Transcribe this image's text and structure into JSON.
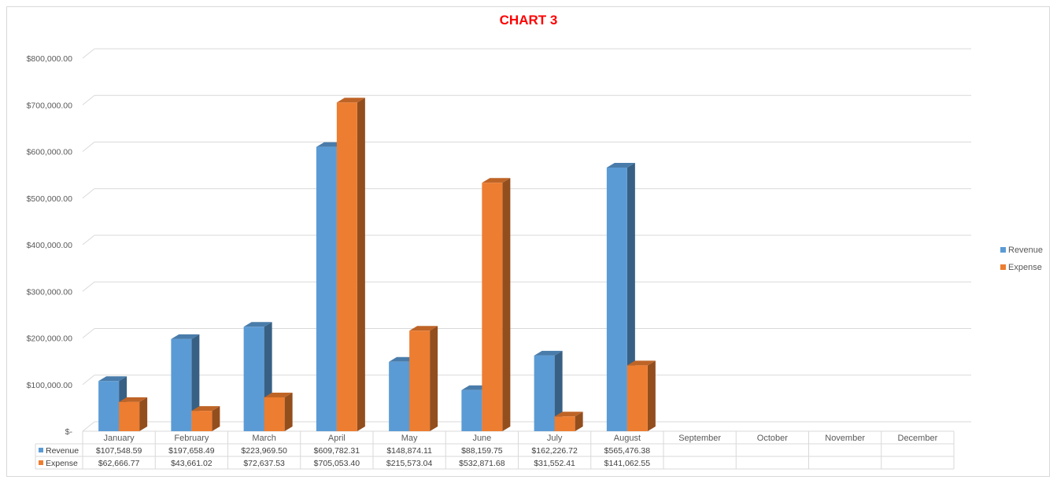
{
  "chart_data": {
    "type": "bar",
    "title": "CHART 3",
    "categories": [
      "January",
      "February",
      "March",
      "April",
      "May",
      "June",
      "July",
      "August",
      "September",
      "October",
      "November",
      "December"
    ],
    "series": [
      {
        "name": "Revenue",
        "color": "#5b9bd5",
        "values": [
          107548.59,
          197658.49,
          223969.5,
          609782.31,
          148874.11,
          88159.75,
          162226.72,
          565476.38,
          null,
          null,
          null,
          null
        ],
        "labels": [
          "$107,548.59",
          "$197,658.49",
          "$223,969.50",
          "$609,782.31",
          "$148,874.11",
          "$88,159.75",
          "$162,226.72",
          "$565,476.38",
          "",
          "",
          "",
          ""
        ]
      },
      {
        "name": "Expense",
        "color": "#ed7d31",
        "values": [
          62666.77,
          43661.02,
          72637.53,
          705053.4,
          215573.04,
          532871.68,
          31552.41,
          141062.55,
          null,
          null,
          null,
          null
        ],
        "labels": [
          "$62,666.77",
          "$43,661.02",
          "$72,637.53",
          "$705,053.40",
          "$215,573.04",
          "$532,871.68",
          "$31,552.41",
          "$141,062.55",
          "",
          "",
          "",
          ""
        ]
      }
    ],
    "ylim": [
      0,
      800000
    ],
    "yticks": [
      0,
      100000,
      200000,
      300000,
      400000,
      500000,
      600000,
      700000,
      800000
    ],
    "ytick_labels": [
      "$-",
      "$100,000.00",
      "$200,000.00",
      "$300,000.00",
      "$400,000.00",
      "$500,000.00",
      "$600,000.00",
      "$700,000.00",
      "$800,000.00"
    ],
    "grid": true,
    "legend": "right",
    "data_table": true
  }
}
